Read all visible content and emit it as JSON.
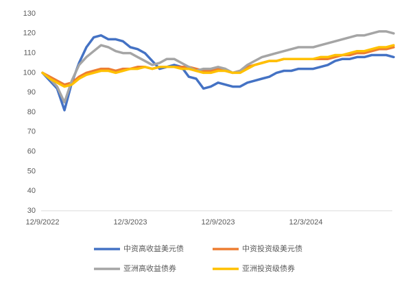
{
  "chart_data": {
    "type": "line",
    "categories": [
      "12/9/2022",
      null,
      null,
      null,
      null,
      null,
      null,
      null,
      null,
      null,
      null,
      null,
      "12/3/2023",
      null,
      null,
      null,
      null,
      null,
      null,
      null,
      null,
      null,
      null,
      null,
      "12/9/2023",
      null,
      null,
      null,
      null,
      null,
      null,
      null,
      null,
      null,
      null,
      null,
      "12/3/2024",
      null,
      null,
      null,
      null,
      null,
      null,
      null,
      null,
      null,
      null,
      null,
      null
    ],
    "series": [
      {
        "name": "中资高收益美元债",
        "color": "#4472c4",
        "values": [
          100,
          96,
          92,
          81,
          95,
          105,
          113,
          118,
          119,
          117,
          117,
          116,
          113,
          112,
          110,
          106,
          102,
          103,
          104,
          103,
          98,
          97,
          92,
          93,
          95,
          94,
          93,
          93,
          95,
          96,
          97,
          98,
          100,
          101,
          101,
          102,
          102,
          102,
          103,
          104,
          106,
          107,
          107,
          108,
          108,
          109,
          109,
          109,
          108
        ]
      },
      {
        "name": "中资投资级美元债",
        "color": "#ed7d31",
        "values": [
          100,
          98,
          96,
          94,
          95,
          98,
          100,
          101,
          102,
          102,
          101,
          102,
          102,
          103,
          103,
          102,
          103,
          103,
          103,
          103,
          103,
          102,
          101,
          101,
          102,
          101,
          100,
          101,
          103,
          104,
          105,
          106,
          106,
          107,
          107,
          107,
          107,
          107,
          107,
          107,
          108,
          109,
          109,
          110,
          110,
          111,
          112,
          112,
          113
        ]
      },
      {
        "name": "亚洲高收益债券",
        "color": "#a5a5a5",
        "values": [
          100,
          97,
          93,
          85,
          96,
          104,
          108,
          111,
          114,
          113,
          111,
          110,
          110,
          108,
          106,
          104,
          105,
          107,
          107,
          105,
          103,
          101,
          102,
          102,
          103,
          102,
          100,
          101,
          104,
          106,
          108,
          109,
          110,
          111,
          112,
          113,
          113,
          113,
          114,
          115,
          116,
          117,
          118,
          119,
          119,
          120,
          121,
          121,
          120
        ]
      },
      {
        "name": "亚洲投资级债券",
        "color": "#ffc000",
        "values": [
          100,
          97,
          95,
          93,
          94,
          97,
          99,
          100,
          101,
          101,
          100,
          101,
          102,
          102,
          103,
          102,
          103,
          103,
          103,
          102,
          102,
          101,
          100,
          100,
          101,
          101,
          100,
          100,
          102,
          104,
          105,
          106,
          106,
          107,
          107,
          107,
          107,
          107,
          108,
          108,
          109,
          109,
          110,
          111,
          111,
          112,
          113,
          113,
          114
        ]
      }
    ],
    "ylim": [
      30,
      130
    ],
    "yticks": [
      30,
      40,
      50,
      60,
      70,
      80,
      90,
      100,
      110,
      120,
      130
    ],
    "grid": false
  }
}
